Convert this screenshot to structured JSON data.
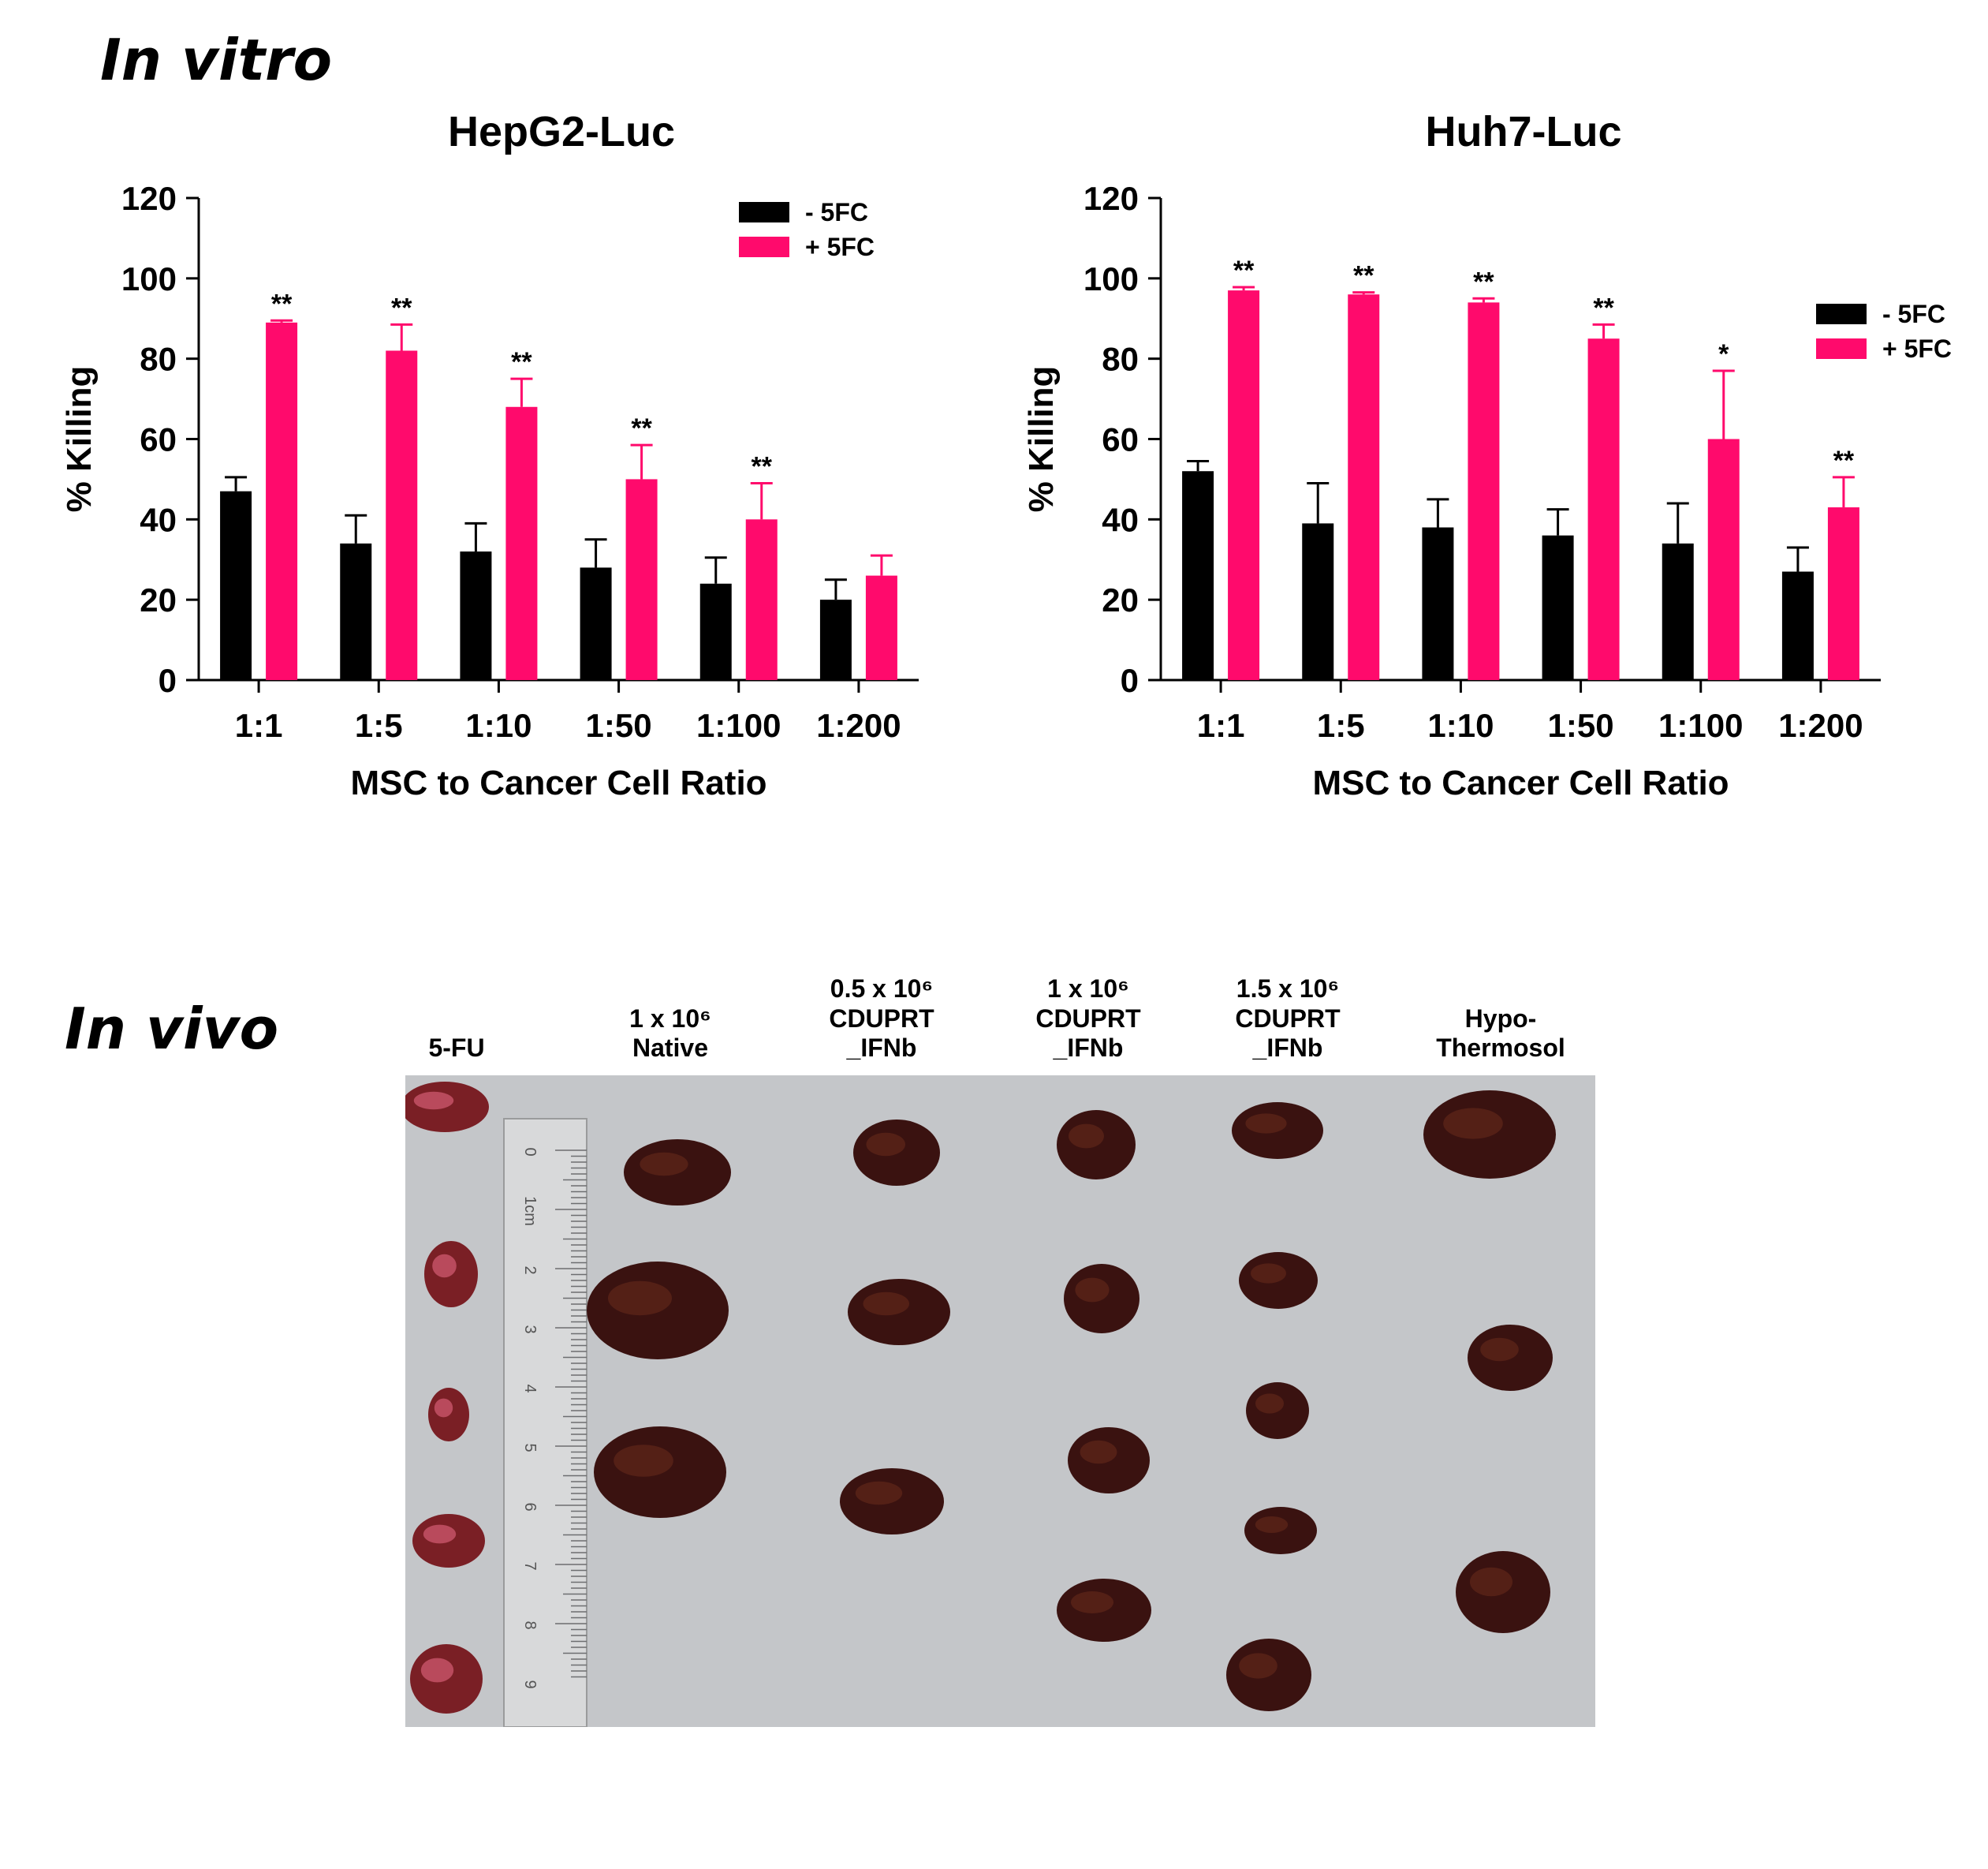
{
  "sections": {
    "in_vitro_title": "In vitro",
    "in_vivo_title": "In vivo"
  },
  "colors": {
    "minus_5fc": "#000000",
    "plus_5fc": "#ff0a6c",
    "photo_background": "#c4c6c9",
    "tumor": "#3a1210"
  },
  "chart_data": [
    {
      "type": "bar",
      "title": "HepG2-Luc",
      "xlabel": "MSC to Cancer Cell Ratio",
      "ylabel": "% Killing",
      "ylim": [
        0,
        120
      ],
      "yticks": [
        0,
        20,
        40,
        60,
        80,
        100,
        120
      ],
      "legend": "top-right",
      "categories": [
        "1:1",
        "1:5",
        "1:10",
        "1:50",
        "1:100",
        "1:200"
      ],
      "series": [
        {
          "name": "- 5FC",
          "color": "#000000",
          "values": [
            47,
            34,
            32,
            28,
            24,
            20
          ],
          "errors": [
            3.5,
            7,
            7,
            7,
            6.5,
            5
          ]
        },
        {
          "name": "+ 5FC",
          "color": "#ff0a6c",
          "values": [
            89,
            82,
            68,
            50,
            40,
            26
          ],
          "errors": [
            0.5,
            6.5,
            7,
            8.5,
            9,
            5
          ]
        }
      ],
      "significance": [
        "**",
        "**",
        "**",
        "**",
        "**",
        ""
      ]
    },
    {
      "type": "bar",
      "title": "Huh7-Luc",
      "xlabel": "MSC to Cancer Cell Ratio",
      "ylabel": "% Killing",
      "ylim": [
        0,
        120
      ],
      "yticks": [
        0,
        20,
        40,
        60,
        80,
        100,
        120
      ],
      "legend": "right",
      "categories": [
        "1:1",
        "1:5",
        "1:10",
        "1:50",
        "1:100",
        "1:200"
      ],
      "series": [
        {
          "name": "- 5FC",
          "color": "#000000",
          "values": [
            52,
            39,
            38,
            36,
            34,
            27
          ],
          "errors": [
            2.5,
            10,
            7,
            6.5,
            10,
            6
          ]
        },
        {
          "name": "+ 5FC",
          "color": "#ff0a6c",
          "values": [
            97,
            96,
            94,
            85,
            60,
            43
          ],
          "errors": [
            0.8,
            0.5,
            1,
            3.5,
            17,
            7.5
          ]
        }
      ],
      "significance": [
        "**",
        "**",
        "**",
        "**",
        "*",
        "**"
      ]
    }
  ],
  "in_vivo": {
    "groups": [
      {
        "lines": [
          "5-FU"
        ]
      },
      {
        "lines": [
          "1 x 10⁶",
          "Native"
        ]
      },
      {
        "lines": [
          "0.5 x 10⁶",
          "CDUPRT",
          "_IFNb"
        ]
      },
      {
        "lines": [
          "1 x 10⁶",
          "CDUPRT",
          "_IFNb"
        ]
      },
      {
        "lines": [
          "1.5 x 10⁶",
          "CDUPRT",
          "_IFNb"
        ]
      },
      {
        "lines": [
          "Hypo-",
          "Thermosol"
        ]
      }
    ],
    "ruler_labels": [
      "0",
      "1cm",
      "2",
      "3",
      "4",
      "5",
      "6",
      "7",
      "8",
      "9"
    ]
  }
}
